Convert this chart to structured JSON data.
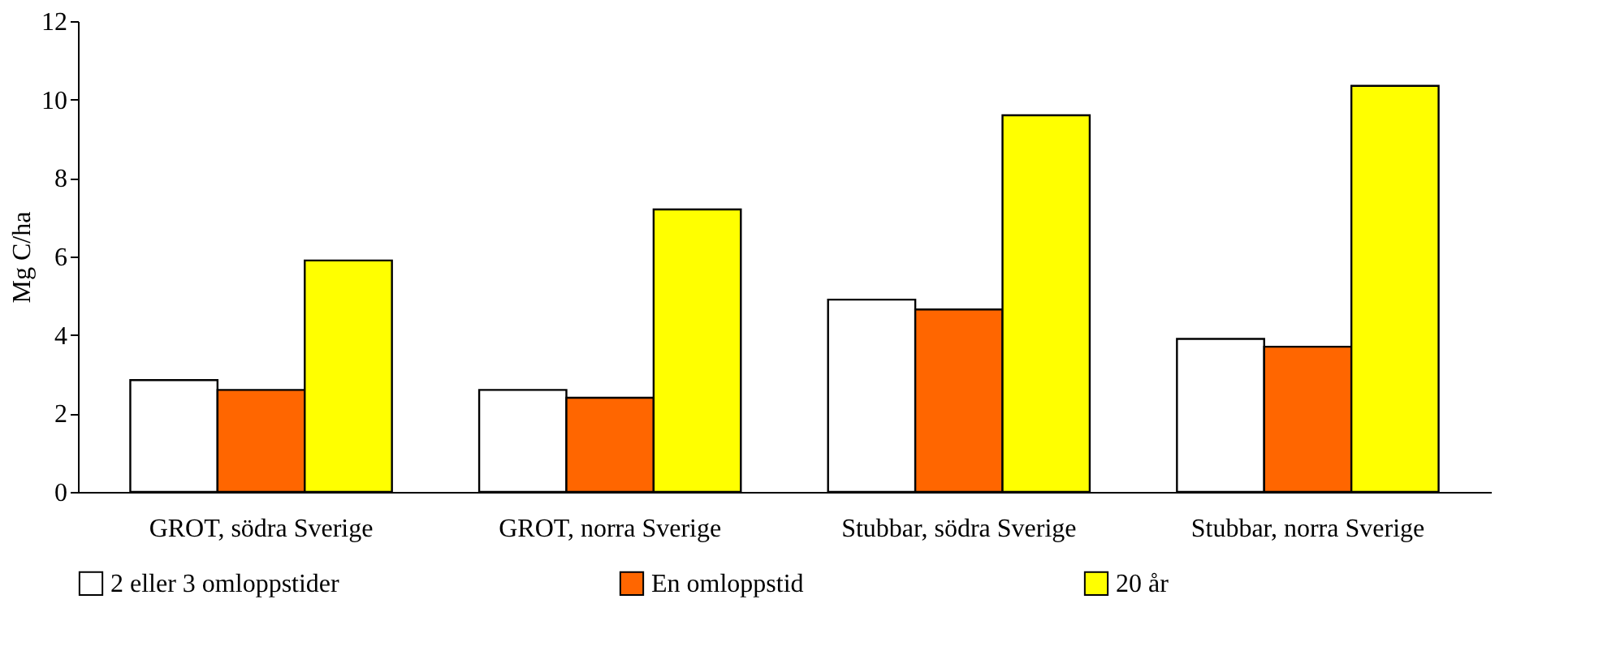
{
  "chart_data": {
    "type": "bar",
    "ylabel": "Mg C/ha",
    "categories": [
      "GROT, södra Sverige",
      "GROT, norra Sverige",
      "Stubbar, södra Sverige",
      "Stubbar, norra Sverige"
    ],
    "series": [
      {
        "name": "2 eller 3 omloppstider",
        "color": "#ffffff",
        "values": [
          2.85,
          2.6,
          4.9,
          3.9
        ]
      },
      {
        "name": "En omloppstid",
        "color": "#ff6600",
        "values": [
          2.6,
          2.4,
          4.65,
          3.7
        ]
      },
      {
        "name": "20 år",
        "color": "#ffff00",
        "values": [
          5.9,
          7.2,
          9.6,
          10.35
        ]
      }
    ],
    "ylim": [
      0,
      12
    ],
    "yticks": [
      0,
      2,
      4,
      6,
      8,
      10,
      12
    ],
    "grid": false,
    "legend": "bottom"
  }
}
